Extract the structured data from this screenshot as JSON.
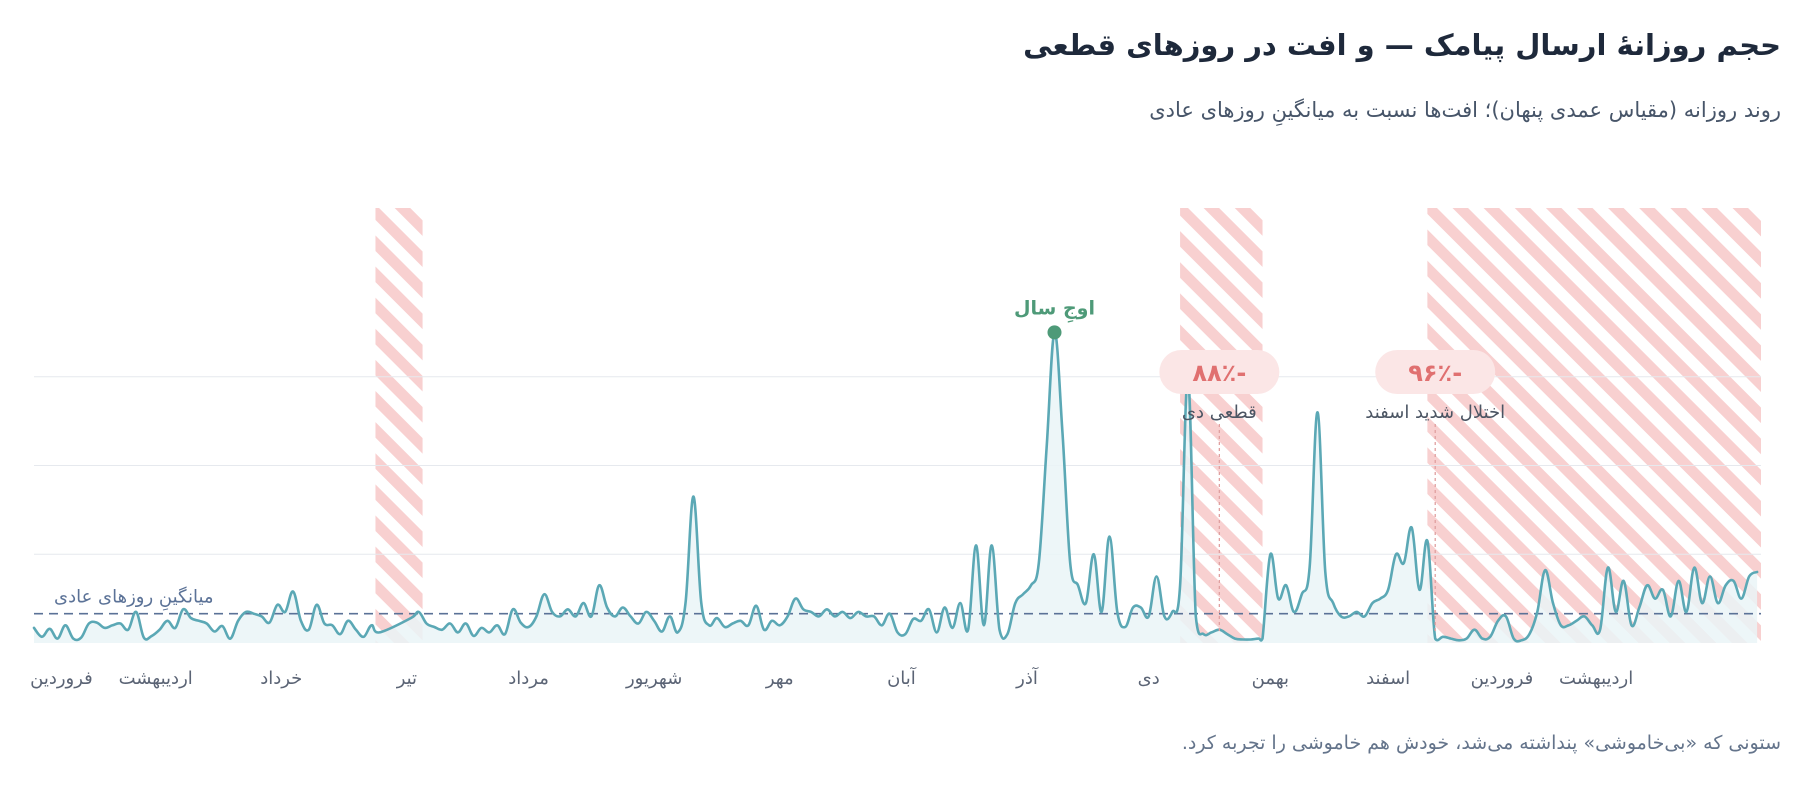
{
  "title": "حجم روزانهٔ ارسال پیامک — و افت در روزهای قطعی",
  "subtitle": "روند روزانه (مقیاس عمدی پنهان)؛ افت‌ها نسبت به میانگینِ روزهای عادی",
  "caption": "ستونی که «بی‌خاموشی» پنداشته می‌شد، خودش هم خاموشی را تجربه کرد.",
  "colors": {
    "line": "#5ba8b5",
    "area": "#eaf4f7",
    "hatch_stripe": "#f8d0d0",
    "baseline": "#5b7297",
    "peak": "#4e9a78",
    "drop_text": "#e07070",
    "drop_pill": "#fbe6e6",
    "grid": "#e6e9ee",
    "tick_text": "#5b6475"
  },
  "chart_data": {
    "type": "line",
    "title": "حجم روزانهٔ ارسال پیامک — و افت در روزهای قطعی",
    "subtitle": "روند روزانه (مقیاس عمدی پنهان)؛ افت‌ها نسبت به میانگینِ روزهای عادی",
    "x_unit": "day",
    "xlim": [
      0,
      440
    ],
    "ylim": [
      0,
      4
    ],
    "y_axis_hidden": true,
    "grid": "horizontal",
    "month_ticks": [
      {
        "label": "فروردین",
        "day": 7
      },
      {
        "label": "اردیبهشت",
        "day": 31
      },
      {
        "label": "خرداد",
        "day": 63
      },
      {
        "label": "تیر",
        "day": 95
      },
      {
        "label": "مرداد",
        "day": 126
      },
      {
        "label": "شهریور",
        "day": 158
      },
      {
        "label": "مهر",
        "day": 190
      },
      {
        "label": "آبان",
        "day": 221
      },
      {
        "label": "آذر",
        "day": 253
      },
      {
        "label": "دی",
        "day": 284
      },
      {
        "label": "بهمن",
        "day": 315
      },
      {
        "label": "اسفند",
        "day": 345
      },
      {
        "label": "فروردین",
        "day": 374
      },
      {
        "label": "اردیبهشت",
        "day": 398
      }
    ],
    "baseline": {
      "value": 0.33,
      "label": "میانگینِ روزهای عادی"
    },
    "outages": [
      {
        "start": 87,
        "end": 99
      },
      {
        "start": 292,
        "end": 313
      },
      {
        "start": 355,
        "end": 440
      }
    ],
    "annotations": [
      {
        "label": "قطعی دی",
        "value": "-۸۸٪",
        "day": 302
      },
      {
        "label": "اختلال شدید اسفند",
        "day": 357,
        "value": "-۹۶٪"
      }
    ],
    "peak": {
      "label": "اوجِ سال",
      "day": 262,
      "value": 3.5
    },
    "series": [
      {
        "values": [
          [
            0,
            0.17
          ],
          [
            2,
            0.07
          ],
          [
            4,
            0.16
          ],
          [
            6,
            0.05
          ],
          [
            8,
            0.2
          ],
          [
            10,
            0.05
          ],
          [
            12,
            0.06
          ],
          [
            14,
            0.22
          ],
          [
            16,
            0.23
          ],
          [
            18,
            0.17
          ],
          [
            20,
            0.2
          ],
          [
            22,
            0.22
          ],
          [
            24,
            0.15
          ],
          [
            26,
            0.35
          ],
          [
            28,
            0.06
          ],
          [
            30,
            0.08
          ],
          [
            32,
            0.15
          ],
          [
            34,
            0.25
          ],
          [
            36,
            0.17
          ],
          [
            38,
            0.38
          ],
          [
            40,
            0.28
          ],
          [
            42,
            0.25
          ],
          [
            44,
            0.22
          ],
          [
            46,
            0.13
          ],
          [
            48,
            0.19
          ],
          [
            50,
            0.05
          ],
          [
            52,
            0.25
          ],
          [
            54,
            0.35
          ],
          [
            56,
            0.33
          ],
          [
            58,
            0.3
          ],
          [
            60,
            0.23
          ],
          [
            62,
            0.43
          ],
          [
            64,
            0.35
          ],
          [
            66,
            0.58
          ],
          [
            68,
            0.25
          ],
          [
            70,
            0.15
          ],
          [
            72,
            0.43
          ],
          [
            74,
            0.22
          ],
          [
            76,
            0.2
          ],
          [
            78,
            0.1
          ],
          [
            80,
            0.25
          ],
          [
            82,
            0.15
          ],
          [
            84,
            0.07
          ],
          [
            86,
            0.2
          ],
          [
            88,
            0.12
          ],
          [
            96,
            0.28
          ],
          [
            98,
            0.35
          ],
          [
            100,
            0.22
          ],
          [
            102,
            0.18
          ],
          [
            104,
            0.15
          ],
          [
            106,
            0.22
          ],
          [
            108,
            0.12
          ],
          [
            110,
            0.22
          ],
          [
            112,
            0.08
          ],
          [
            114,
            0.17
          ],
          [
            116,
            0.12
          ],
          [
            118,
            0.2
          ],
          [
            120,
            0.1
          ],
          [
            122,
            0.38
          ],
          [
            124,
            0.23
          ],
          [
            126,
            0.18
          ],
          [
            128,
            0.3
          ],
          [
            130,
            0.55
          ],
          [
            132,
            0.35
          ],
          [
            134,
            0.3
          ],
          [
            136,
            0.38
          ],
          [
            138,
            0.3
          ],
          [
            140,
            0.45
          ],
          [
            142,
            0.3
          ],
          [
            144,
            0.65
          ],
          [
            146,
            0.4
          ],
          [
            148,
            0.3
          ],
          [
            150,
            0.4
          ],
          [
            152,
            0.3
          ],
          [
            154,
            0.22
          ],
          [
            156,
            0.35
          ],
          [
            158,
            0.25
          ],
          [
            160,
            0.13
          ],
          [
            162,
            0.3
          ],
          [
            164,
            0.12
          ],
          [
            166,
            0.45
          ],
          [
            168,
            1.65
          ],
          [
            170,
            0.45
          ],
          [
            172,
            0.2
          ],
          [
            174,
            0.28
          ],
          [
            176,
            0.18
          ],
          [
            178,
            0.22
          ],
          [
            180,
            0.25
          ],
          [
            182,
            0.2
          ],
          [
            184,
            0.42
          ],
          [
            186,
            0.15
          ],
          [
            188,
            0.25
          ],
          [
            190,
            0.2
          ],
          [
            192,
            0.3
          ],
          [
            194,
            0.5
          ],
          [
            196,
            0.38
          ],
          [
            198,
            0.35
          ],
          [
            200,
            0.3
          ],
          [
            202,
            0.38
          ],
          [
            204,
            0.3
          ],
          [
            206,
            0.35
          ],
          [
            208,
            0.28
          ],
          [
            210,
            0.35
          ],
          [
            212,
            0.3
          ],
          [
            214,
            0.3
          ],
          [
            216,
            0.2
          ],
          [
            218,
            0.33
          ],
          [
            220,
            0.12
          ],
          [
            222,
            0.1
          ],
          [
            224,
            0.27
          ],
          [
            226,
            0.25
          ],
          [
            228,
            0.38
          ],
          [
            230,
            0.12
          ],
          [
            232,
            0.4
          ],
          [
            234,
            0.17
          ],
          [
            236,
            0.45
          ],
          [
            238,
            0.15
          ],
          [
            240,
            1.1
          ],
          [
            242,
            0.2
          ],
          [
            244,
            1.1
          ],
          [
            246,
            0.15
          ],
          [
            248,
            0.1
          ],
          [
            250,
            0.45
          ],
          [
            252,
            0.55
          ],
          [
            254,
            0.65
          ],
          [
            256,
            0.9
          ],
          [
            258,
            2.2
          ],
          [
            260,
            3.5
          ],
          [
            262,
            2.4
          ],
          [
            264,
            0.9
          ],
          [
            266,
            0.65
          ],
          [
            268,
            0.45
          ],
          [
            270,
            1.0
          ],
          [
            272,
            0.35
          ],
          [
            274,
            1.2
          ],
          [
            276,
            0.35
          ],
          [
            278,
            0.18
          ],
          [
            280,
            0.4
          ],
          [
            282,
            0.4
          ],
          [
            284,
            0.3
          ],
          [
            286,
            0.75
          ],
          [
            288,
            0.3
          ],
          [
            290,
            0.35
          ],
          [
            292,
            0.65
          ],
          [
            294,
            3.0
          ],
          [
            296,
            0.3
          ],
          [
            298,
            0.1
          ],
          [
            300,
            0.12
          ],
          [
            302,
            0.15
          ],
          [
            304,
            0.1
          ],
          [
            306,
            0.05
          ],
          [
            308,
            0.04
          ],
          [
            310,
            0.04
          ],
          [
            312,
            0.05
          ],
          [
            313,
            0.05
          ],
          [
            315,
            1.0
          ],
          [
            317,
            0.5
          ],
          [
            319,
            0.65
          ],
          [
            321,
            0.35
          ],
          [
            323,
            0.55
          ],
          [
            325,
            0.85
          ],
          [
            327,
            2.6
          ],
          [
            329,
            0.8
          ],
          [
            331,
            0.45
          ],
          [
            333,
            0.3
          ],
          [
            335,
            0.3
          ],
          [
            337,
            0.35
          ],
          [
            339,
            0.3
          ],
          [
            341,
            0.45
          ],
          [
            343,
            0.5
          ],
          [
            345,
            0.6
          ],
          [
            347,
            1.0
          ],
          [
            349,
            0.9
          ],
          [
            351,
            1.3
          ],
          [
            353,
            0.6
          ],
          [
            355,
            1.15
          ],
          [
            357,
            0.05
          ],
          [
            359,
            0.07
          ],
          [
            361,
            0.05
          ],
          [
            363,
            0.03
          ],
          [
            365,
            0.05
          ],
          [
            367,
            0.15
          ],
          [
            369,
            0.05
          ],
          [
            371,
            0.07
          ],
          [
            373,
            0.25
          ],
          [
            375,
            0.3
          ],
          [
            377,
            0.05
          ],
          [
            379,
            0.03
          ],
          [
            381,
            0.1
          ],
          [
            383,
            0.35
          ],
          [
            385,
            0.82
          ],
          [
            387,
            0.45
          ],
          [
            389,
            0.2
          ],
          [
            391,
            0.2
          ],
          [
            393,
            0.25
          ],
          [
            395,
            0.3
          ],
          [
            397,
            0.2
          ],
          [
            399,
            0.15
          ],
          [
            401,
            0.85
          ],
          [
            403,
            0.35
          ],
          [
            405,
            0.7
          ],
          [
            407,
            0.2
          ],
          [
            409,
            0.4
          ],
          [
            411,
            0.65
          ],
          [
            413,
            0.5
          ],
          [
            415,
            0.6
          ],
          [
            417,
            0.3
          ],
          [
            419,
            0.7
          ],
          [
            421,
            0.35
          ],
          [
            423,
            0.85
          ],
          [
            425,
            0.45
          ],
          [
            427,
            0.75
          ],
          [
            429,
            0.45
          ],
          [
            431,
            0.65
          ],
          [
            433,
            0.7
          ],
          [
            435,
            0.5
          ],
          [
            437,
            0.75
          ],
          [
            439,
            0.8
          ]
        ]
      }
    ]
  }
}
